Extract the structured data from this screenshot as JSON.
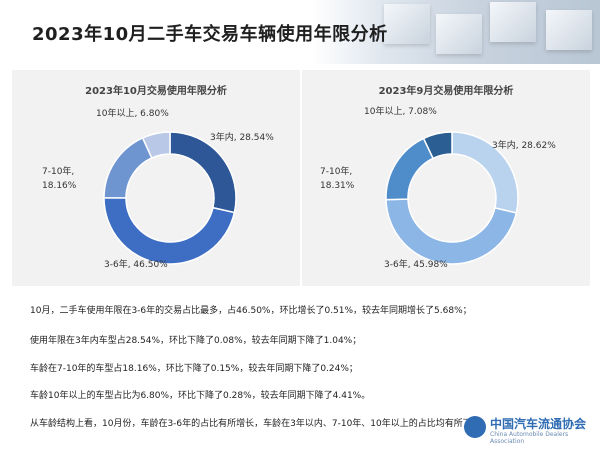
{
  "title": "2023年10月二手车交易车辆使用年限分析",
  "chart_data": [
    {
      "type": "pie",
      "donut": true,
      "title": "2023年10月交易使用年限分析",
      "categories": [
        "3年内",
        "3-6年",
        "7-10年",
        "10年以上"
      ],
      "values": [
        28.54,
        46.5,
        18.16,
        6.8
      ],
      "colors": [
        "#2d5796",
        "#3e6ec4",
        "#6f95d1",
        "#b8c8e6"
      ],
      "labels": [
        "3年内, 28.54%",
        "3-6年, 46.50%",
        "7-10年,",
        "18.16%",
        "10年以上, 6.80%"
      ]
    },
    {
      "type": "pie",
      "donut": true,
      "title": "2023年9月交易使用年限分析",
      "categories": [
        "3年内",
        "3-6年",
        "7-10年",
        "10年以上"
      ],
      "values": [
        28.62,
        45.98,
        18.31,
        7.08
      ],
      "colors": [
        "#b9d2ee",
        "#8cb6e6",
        "#4f8cca",
        "#2b5f93"
      ],
      "labels": [
        "3年内, 28.62%",
        "3-6年, 45.98%",
        "7-10年,",
        "18.31%",
        "10年以上, 7.08%"
      ]
    }
  ],
  "paragraphs": [
    "10月，二手车使用年限在3-6年的交易占比最多，占46.50%，环比增长了0.51%，较去年同期增长了5.68%；",
    "使用年限在3年内车型占28.54%，环比下降了0.08%，较去年同期下降了1.04%；",
    "车龄在7-10年的车型占18.16%，环比下降了0.15%，较去年同期下降了0.24%；",
    "车龄10年以上的车型占比为6.80%，环比下降了0.28%，较去年同期下降了4.41%。",
    "从车龄结构上看，10月份，车龄在3-6年的占比有所增长，车龄在3年以内、7-10年、10年以上的占比均有所下降。"
  ],
  "logo": {
    "cn": "中国汽车流通协会",
    "en": "China Automobile Dealers Association"
  }
}
